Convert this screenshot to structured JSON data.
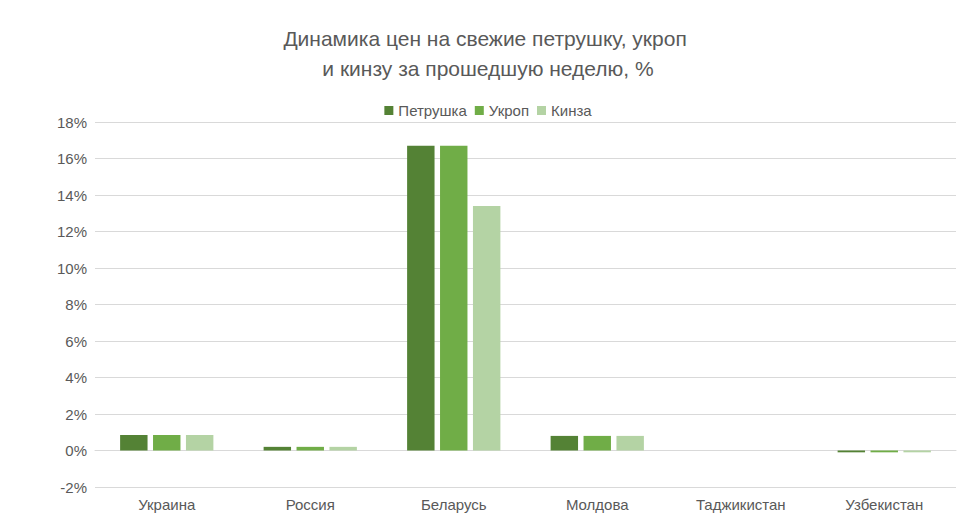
{
  "chart_data": {
    "type": "bar",
    "title": "Динамика цен на свежие петрушку, укроп и кинзу за прошедшую неделю, %",
    "categories": [
      "Украина",
      "Россия",
      "Беларусь",
      "Молдова",
      "Таджикистан",
      "Узбекистан"
    ],
    "series": [
      {
        "name": "Петрушка",
        "color": "#548235",
        "values": [
          0.85,
          0.2,
          16.7,
          0.8,
          0,
          -0.1
        ]
      },
      {
        "name": "Укроп",
        "color": "#70ad47",
        "values": [
          0.85,
          0.2,
          16.7,
          0.8,
          0,
          -0.1
        ]
      },
      {
        "name": "Кинза",
        "color": "#b4d3a4",
        "values": [
          0.85,
          0.2,
          13.4,
          0.8,
          0,
          -0.1
        ]
      }
    ],
    "ylim": [
      -2,
      18
    ],
    "yticks": [
      {
        "value": -2,
        "label": "-2%"
      },
      {
        "value": 0,
        "label": "0%"
      },
      {
        "value": 2,
        "label": "2%"
      },
      {
        "value": 4,
        "label": "4%"
      },
      {
        "value": 6,
        "label": "6%"
      },
      {
        "value": 8,
        "label": "8%"
      },
      {
        "value": 10,
        "label": "10%"
      },
      {
        "value": 12,
        "label": "12%"
      },
      {
        "value": 14,
        "label": "14%"
      },
      {
        "value": 16,
        "label": "16%"
      },
      {
        "value": 18,
        "label": "18%"
      }
    ],
    "grid": true,
    "legend": "top"
  }
}
